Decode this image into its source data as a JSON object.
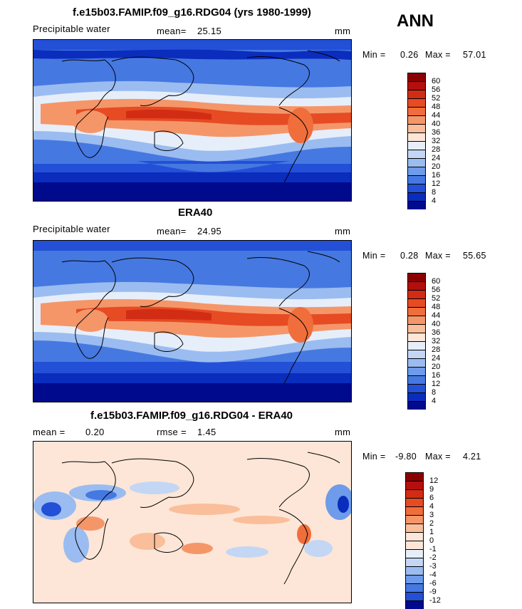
{
  "season": "ANN",
  "panels": [
    {
      "title": "f.e15b03.FAMIP.f09_g16.RDG04 (yrs 1980-1999)",
      "left_label": "Precipitable water",
      "stat_label": "mean=",
      "stat_value": "25.15",
      "unit": "mm",
      "min_label": "Min =",
      "min_value": "0.26",
      "max_label": "Max =",
      "max_value": "57.01"
    },
    {
      "title": "ERA40",
      "left_label": "Precipitable water",
      "stat_label": "mean=",
      "stat_value": "24.95",
      "unit": "mm",
      "min_label": "Min =",
      "min_value": "0.28",
      "max_label": "Max =",
      "max_value": "55.65"
    },
    {
      "title": "f.e15b03.FAMIP.f09_g16.RDG04 - ERA40",
      "left_label": "mean =",
      "left_value": "0.20",
      "stat_label": "rmse =",
      "stat_value": "1.45",
      "unit": "mm",
      "min_label": "Min =",
      "min_value": "-9.80",
      "max_label": "Max =",
      "max_value": "4.21"
    }
  ],
  "colorbar_abs": {
    "labels": [
      "60",
      "56",
      "52",
      "48",
      "44",
      "40",
      "36",
      "32",
      "28",
      "24",
      "20",
      "16",
      "12",
      "8",
      "4"
    ],
    "colors": [
      "#8b0000",
      "#b40f0f",
      "#d22d14",
      "#e64b23",
      "#f06e3c",
      "#f59669",
      "#fabe9b",
      "#fde6d7",
      "#e6eefa",
      "#c3d7f5",
      "#9bbcf0",
      "#6e9bea",
      "#4678e1",
      "#2350d7",
      "#0a2dbe",
      "#000a8c"
    ]
  },
  "colorbar_diff": {
    "labels": [
      "12",
      "9",
      "6",
      "4",
      "3",
      "2",
      "1",
      "0",
      "-1",
      "-2",
      "-3",
      "-4",
      "-6",
      "-9",
      "-12"
    ],
    "colors": [
      "#8b0000",
      "#b40f0f",
      "#d22d14",
      "#e64b23",
      "#f06e3c",
      "#f59669",
      "#fabe9b",
      "#fde6d7",
      "#fde6d7",
      "#e6eefa",
      "#c3d7f5",
      "#9bbcf0",
      "#6e9bea",
      "#4678e1",
      "#2350d7",
      "#000a8c"
    ]
  }
}
